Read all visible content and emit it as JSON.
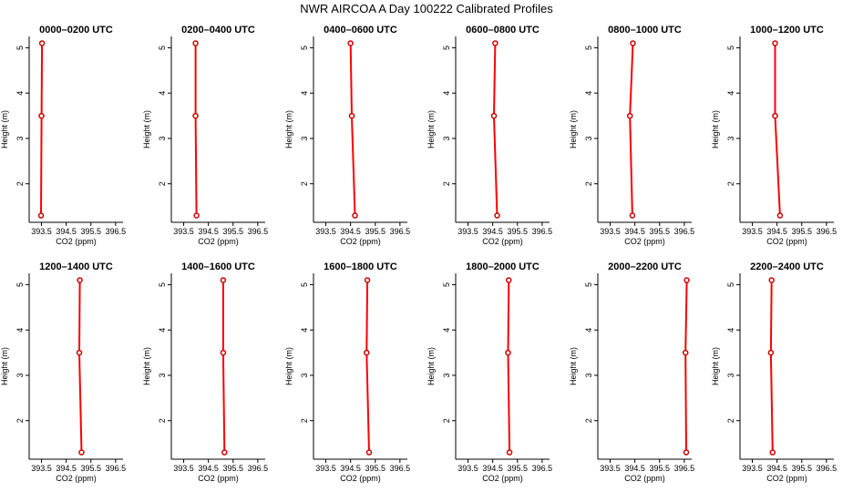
{
  "title": "NWR AIRCOA A  Day 100222  Calibrated Profiles",
  "colors": {
    "line": "#ff0000",
    "point": "#cc0000",
    "axis": "#000000"
  },
  "chart_data": {
    "type": "line",
    "xlabel": "CO2 (ppm)",
    "ylabel": "Height (m)",
    "xlim": [
      393.0,
      396.8
    ],
    "ylim": [
      1.15,
      5.25
    ],
    "xticks": [
      "393.5",
      "394.5",
      "395.5",
      "396.5"
    ],
    "yticks": [
      "2",
      "3",
      "4",
      "5"
    ],
    "grid": false,
    "panels": [
      {
        "title": "0000–0200 UTC",
        "points": [
          {
            "x": 393.52,
            "y": 5.1
          },
          {
            "x": 393.5,
            "y": 3.5
          },
          {
            "x": 393.48,
            "y": 1.3
          }
        ]
      },
      {
        "title": "0200–0400 UTC",
        "points": [
          {
            "x": 393.98,
            "y": 5.1
          },
          {
            "x": 393.98,
            "y": 3.5
          },
          {
            "x": 394.02,
            "y": 1.3
          }
        ]
      },
      {
        "title": "0400–0600 UTC",
        "points": [
          {
            "x": 394.5,
            "y": 5.1
          },
          {
            "x": 394.55,
            "y": 3.5
          },
          {
            "x": 394.68,
            "y": 1.3
          }
        ]
      },
      {
        "title": "0600–0800 UTC",
        "points": [
          {
            "x": 394.6,
            "y": 5.1
          },
          {
            "x": 394.55,
            "y": 3.5
          },
          {
            "x": 394.68,
            "y": 1.3
          }
        ]
      },
      {
        "title": "0800–1000 UTC",
        "points": [
          {
            "x": 394.42,
            "y": 5.1
          },
          {
            "x": 394.3,
            "y": 3.5
          },
          {
            "x": 394.4,
            "y": 1.3
          }
        ]
      },
      {
        "title": "1000–1200 UTC",
        "points": [
          {
            "x": 394.42,
            "y": 5.1
          },
          {
            "x": 394.42,
            "y": 3.5
          },
          {
            "x": 394.62,
            "y": 1.3
          }
        ]
      },
      {
        "title": "1200–1400 UTC",
        "points": [
          {
            "x": 395.05,
            "y": 5.1
          },
          {
            "x": 395.03,
            "y": 3.5
          },
          {
            "x": 395.12,
            "y": 1.3
          }
        ]
      },
      {
        "title": "1400–1600 UTC",
        "points": [
          {
            "x": 395.1,
            "y": 5.1
          },
          {
            "x": 395.1,
            "y": 3.5
          },
          {
            "x": 395.15,
            "y": 1.3
          }
        ]
      },
      {
        "title": "1600–1800 UTC",
        "points": [
          {
            "x": 395.18,
            "y": 5.1
          },
          {
            "x": 395.15,
            "y": 3.5
          },
          {
            "x": 395.25,
            "y": 1.3
          }
        ]
      },
      {
        "title": "1800–2000 UTC",
        "points": [
          {
            "x": 395.15,
            "y": 5.1
          },
          {
            "x": 395.12,
            "y": 3.5
          },
          {
            "x": 395.18,
            "y": 1.3
          }
        ]
      },
      {
        "title": "2000–2200 UTC",
        "points": [
          {
            "x": 396.6,
            "y": 5.1
          },
          {
            "x": 396.55,
            "y": 3.5
          },
          {
            "x": 396.58,
            "y": 1.3
          }
        ]
      },
      {
        "title": "2200–2400 UTC",
        "points": [
          {
            "x": 394.28,
            "y": 5.1
          },
          {
            "x": 394.25,
            "y": 3.5
          },
          {
            "x": 394.32,
            "y": 1.3
          }
        ]
      }
    ]
  }
}
